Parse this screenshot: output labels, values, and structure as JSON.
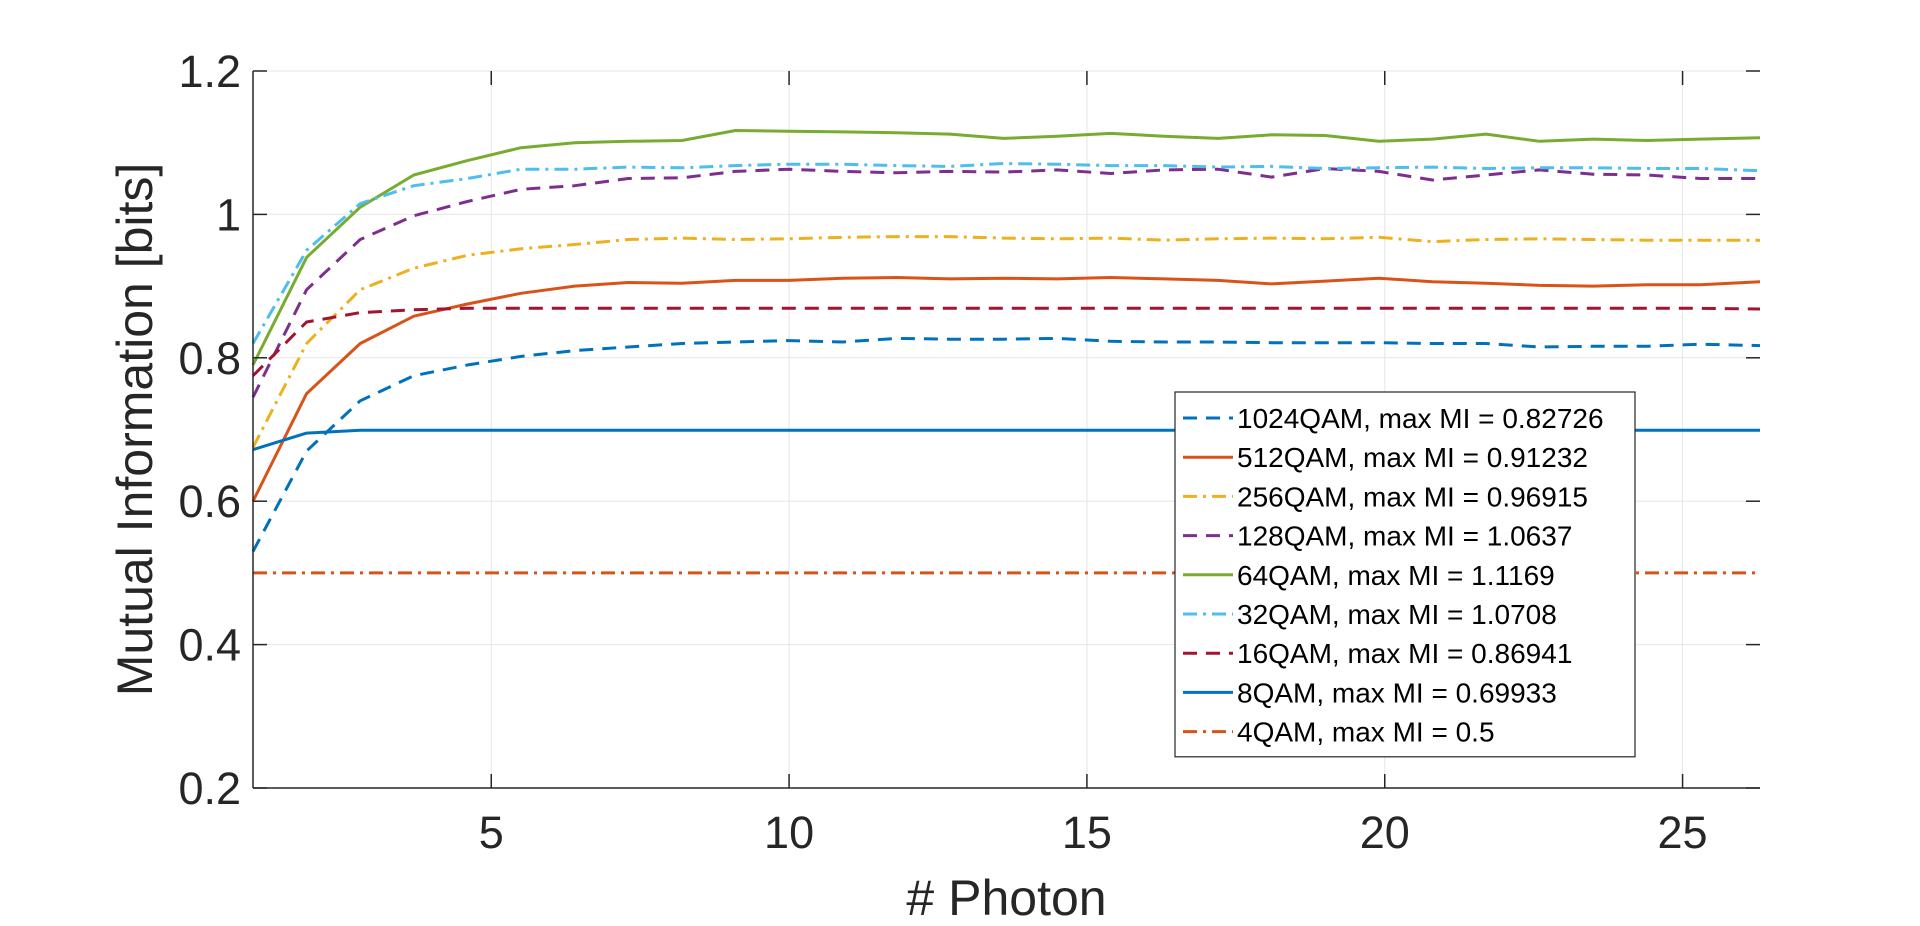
{
  "chart_data": {
    "type": "line",
    "title": "",
    "xlabel": "# Photon",
    "ylabel": "Mutual Information [bits]",
    "xlim": [
      1,
      26.3
    ],
    "ylim": [
      0.2,
      1.2
    ],
    "xticks": [
      5,
      10,
      15,
      20,
      25
    ],
    "xtick_labels": [
      "5",
      "10",
      "15",
      "20",
      "25"
    ],
    "yticks": [
      0.2,
      0.4,
      0.6,
      0.8,
      1.0,
      1.2
    ],
    "ytick_labels": [
      "0.2",
      "0.4",
      "0.6",
      "0.8",
      "1",
      "1.2"
    ],
    "grid": true,
    "legend_position": "right-center",
    "x": [
      1,
      1.9,
      2.8,
      3.7,
      4.6,
      5.5,
      6.4,
      7.3,
      8.2,
      9.1,
      10,
      10.9,
      11.8,
      12.7,
      13.6,
      14.5,
      15.4,
      16.3,
      17.2,
      18.1,
      19,
      19.9,
      20.8,
      21.7,
      22.6,
      23.5,
      24.4,
      25.3,
      26.3
    ],
    "series": [
      {
        "name": "1024QAM, max MI = 0.82726",
        "color": "#0072BD",
        "dash": "dashed",
        "values": [
          0.53,
          0.67,
          0.74,
          0.775,
          0.79,
          0.802,
          0.81,
          0.815,
          0.82,
          0.822,
          0.824,
          0.822,
          0.827,
          0.826,
          0.826,
          0.827,
          0.823,
          0.822,
          0.822,
          0.821,
          0.821,
          0.821,
          0.82,
          0.82,
          0.815,
          0.816,
          0.816,
          0.819,
          0.817
        ]
      },
      {
        "name": "512QAM, max MI = 0.91232",
        "color": "#D95319",
        "dash": "solid",
        "values": [
          0.6,
          0.75,
          0.82,
          0.858,
          0.875,
          0.89,
          0.9,
          0.905,
          0.904,
          0.908,
          0.908,
          0.911,
          0.912,
          0.91,
          0.911,
          0.91,
          0.912,
          0.91,
          0.908,
          0.903,
          0.907,
          0.911,
          0.906,
          0.904,
          0.901,
          0.9,
          0.902,
          0.902,
          0.906
        ]
      },
      {
        "name": "256QAM, max MI = 0.96915",
        "color": "#EDB120",
        "dash": "dashdot",
        "values": [
          0.675,
          0.82,
          0.895,
          0.925,
          0.943,
          0.952,
          0.958,
          0.965,
          0.967,
          0.965,
          0.966,
          0.968,
          0.969,
          0.969,
          0.967,
          0.966,
          0.967,
          0.964,
          0.966,
          0.967,
          0.966,
          0.968,
          0.962,
          0.965,
          0.966,
          0.965,
          0.964,
          0.964,
          0.964
        ]
      },
      {
        "name": "128QAM, max MI = 1.0637",
        "color": "#7E2F8E",
        "dash": "dashed",
        "values": [
          0.745,
          0.895,
          0.965,
          0.998,
          1.018,
          1.035,
          1.04,
          1.05,
          1.051,
          1.06,
          1.063,
          1.06,
          1.058,
          1.06,
          1.059,
          1.062,
          1.057,
          1.062,
          1.063,
          1.052,
          1.064,
          1.06,
          1.048,
          1.055,
          1.062,
          1.056,
          1.055,
          1.05,
          1.05
        ]
      },
      {
        "name": "64QAM, max MI = 1.1169",
        "color": "#77AC30",
        "dash": "solid",
        "values": [
          0.79,
          0.94,
          1.01,
          1.055,
          1.075,
          1.093,
          1.1,
          1.102,
          1.103,
          1.117,
          1.116,
          1.115,
          1.114,
          1.112,
          1.106,
          1.109,
          1.113,
          1.109,
          1.106,
          1.111,
          1.11,
          1.102,
          1.105,
          1.112,
          1.102,
          1.105,
          1.103,
          1.105,
          1.107
        ]
      },
      {
        "name": "32QAM, max MI = 1.0708",
        "color": "#4DBEEE",
        "dash": "dashdot",
        "values": [
          0.82,
          0.95,
          1.015,
          1.04,
          1.05,
          1.063,
          1.063,
          1.066,
          1.065,
          1.068,
          1.07,
          1.07,
          1.068,
          1.067,
          1.071,
          1.07,
          1.068,
          1.068,
          1.066,
          1.067,
          1.064,
          1.065,
          1.066,
          1.064,
          1.065,
          1.065,
          1.064,
          1.064,
          1.061
        ]
      },
      {
        "name": "16QAM, max MI = 0.86941",
        "color": "#A2142F",
        "dash": "dashed",
        "values": [
          0.775,
          0.85,
          0.863,
          0.867,
          0.869,
          0.869,
          0.869,
          0.869,
          0.869,
          0.869,
          0.869,
          0.869,
          0.869,
          0.869,
          0.869,
          0.869,
          0.869,
          0.869,
          0.869,
          0.869,
          0.869,
          0.869,
          0.869,
          0.869,
          0.869,
          0.869,
          0.869,
          0.869,
          0.868
        ]
      },
      {
        "name": "8QAM, max MI = 0.69933",
        "color": "#0072BD",
        "dash": "solid",
        "values": [
          0.672,
          0.695,
          0.699,
          0.699,
          0.699,
          0.699,
          0.699,
          0.699,
          0.699,
          0.699,
          0.699,
          0.699,
          0.699,
          0.699,
          0.699,
          0.699,
          0.699,
          0.699,
          0.699,
          0.699,
          0.699,
          0.699,
          0.699,
          0.699,
          0.699,
          0.699,
          0.699,
          0.699,
          0.699
        ]
      },
      {
        "name": "4QAM, max MI = 0.5",
        "color": "#D95319",
        "dash": "dashdot",
        "values": [
          0.5,
          0.5,
          0.5,
          0.5,
          0.5,
          0.5,
          0.5,
          0.5,
          0.5,
          0.5,
          0.5,
          0.5,
          0.5,
          0.5,
          0.5,
          0.5,
          0.5,
          0.5,
          0.5,
          0.5,
          0.5,
          0.5,
          0.5,
          0.5,
          0.5,
          0.5,
          0.5,
          0.5,
          0.5
        ]
      }
    ]
  }
}
